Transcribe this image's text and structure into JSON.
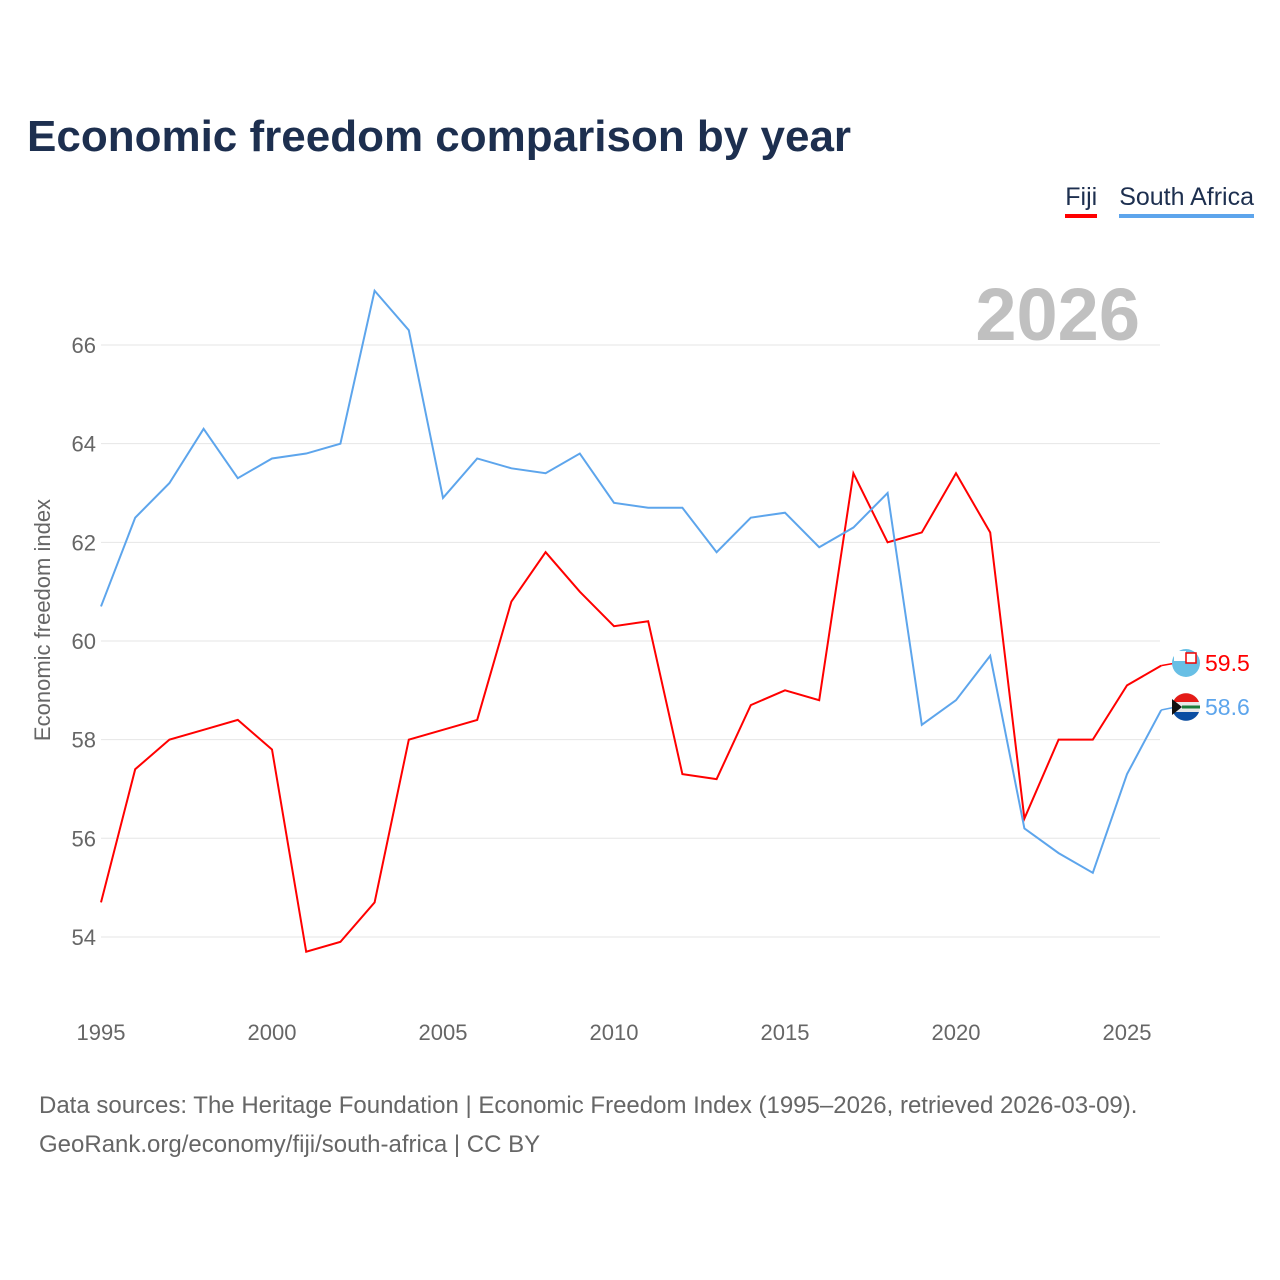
{
  "chart_data": {
    "type": "line",
    "title": "Economic freedom comparison by year",
    "xlabel": "",
    "ylabel": "Economic freedom index",
    "year_watermark": "2026",
    "x": [
      1995,
      1996,
      1997,
      1998,
      1999,
      2000,
      2001,
      2002,
      2003,
      2004,
      2005,
      2006,
      2007,
      2008,
      2009,
      2010,
      2011,
      2012,
      2013,
      2014,
      2015,
      2016,
      2017,
      2018,
      2019,
      2020,
      2021,
      2022,
      2023,
      2024,
      2025,
      2026
    ],
    "xticks": [
      "1995",
      "2000",
      "2005",
      "2010",
      "2015",
      "2020",
      "2025"
    ],
    "yticks": [
      "54",
      "56",
      "58",
      "60",
      "62",
      "64",
      "66"
    ],
    "xlim": [
      1995,
      2026
    ],
    "ylim": [
      53,
      67.5
    ],
    "grid": true,
    "legend_position": "top-right",
    "series": [
      {
        "name": "Fiji",
        "color": "#ff0000",
        "end_label": "59.5",
        "values": [
          54.7,
          57.4,
          58.0,
          58.2,
          58.4,
          57.8,
          53.7,
          53.9,
          54.7,
          58.0,
          58.2,
          58.4,
          60.8,
          61.8,
          61.0,
          60.3,
          60.4,
          57.3,
          57.2,
          58.7,
          59.0,
          58.8,
          63.4,
          62.0,
          62.2,
          63.4,
          62.2,
          56.4,
          58.0,
          58.0,
          59.1,
          59.5
        ]
      },
      {
        "name": "South Africa",
        "color": "#5da5ec",
        "end_label": "58.6",
        "values": [
          60.7,
          62.5,
          63.2,
          64.3,
          63.3,
          63.7,
          63.8,
          64.0,
          67.1,
          66.3,
          62.9,
          63.7,
          63.5,
          63.4,
          63.8,
          62.8,
          62.7,
          62.7,
          61.8,
          62.5,
          62.6,
          61.9,
          62.3,
          63.0,
          58.3,
          58.8,
          59.7,
          56.2,
          55.7,
          55.3,
          57.3,
          58.6
        ]
      }
    ]
  },
  "footer": {
    "line1": "Data sources: The Heritage Foundation | Economic Freedom Index (1995–2026, retrieved 2026-03-09).",
    "line2": "GeoRank.org/economy/fiji/south-africa | CC BY"
  }
}
